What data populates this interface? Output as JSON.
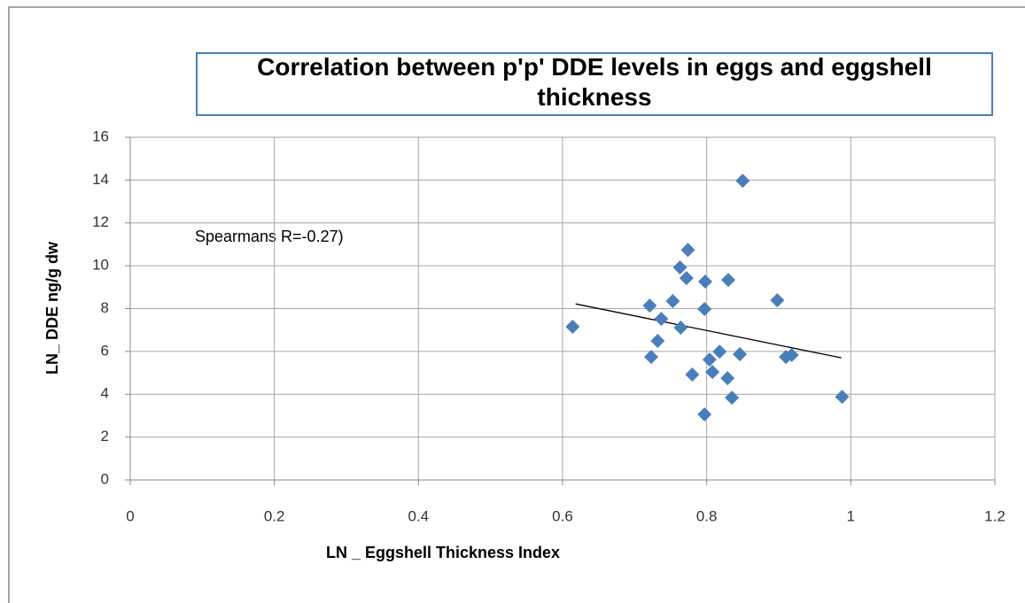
{
  "chart_data": {
    "type": "scatter",
    "title": "Correlation between p'p' DDE levels in eggs and  eggshell thickness",
    "x_label": "LN _ Eggshell Thickness Index",
    "y_label": "LN_ DDE ng/g dw",
    "annotation": "Spearmans R=-0.27)",
    "color": "#4a7ebb",
    "x": [
      0.85,
      0.774,
      0.763,
      0.772,
      0.798,
      0.83,
      0.898,
      0.753,
      0.721,
      0.797,
      0.737,
      0.764,
      0.614,
      0.732,
      0.818,
      0.846,
      0.804,
      0.723,
      0.91,
      0.918,
      0.78,
      0.808,
      0.829,
      0.835,
      0.988,
      0.797
    ],
    "y": [
      13.97,
      10.74,
      9.92,
      9.42,
      9.26,
      9.34,
      8.39,
      8.35,
      8.14,
      7.98,
      7.52,
      7.11,
      7.15,
      6.49,
      5.99,
      5.87,
      5.62,
      5.74,
      5.74,
      5.83,
      4.92,
      5.04,
      4.75,
      3.84,
      3.88,
      3.06
    ],
    "trendline": {
      "x": [
        0.618,
        0.987
      ],
      "y": [
        8.22,
        5.7
      ]
    },
    "xlim": [
      0,
      1.2
    ],
    "xticks": [
      0,
      0.2,
      0.4,
      0.6,
      0.8,
      1,
      1.2
    ],
    "ylim": [
      0,
      16
    ],
    "yticks": [
      0,
      2,
      4,
      6,
      8,
      10,
      12,
      14,
      16
    ],
    "grid": true
  }
}
